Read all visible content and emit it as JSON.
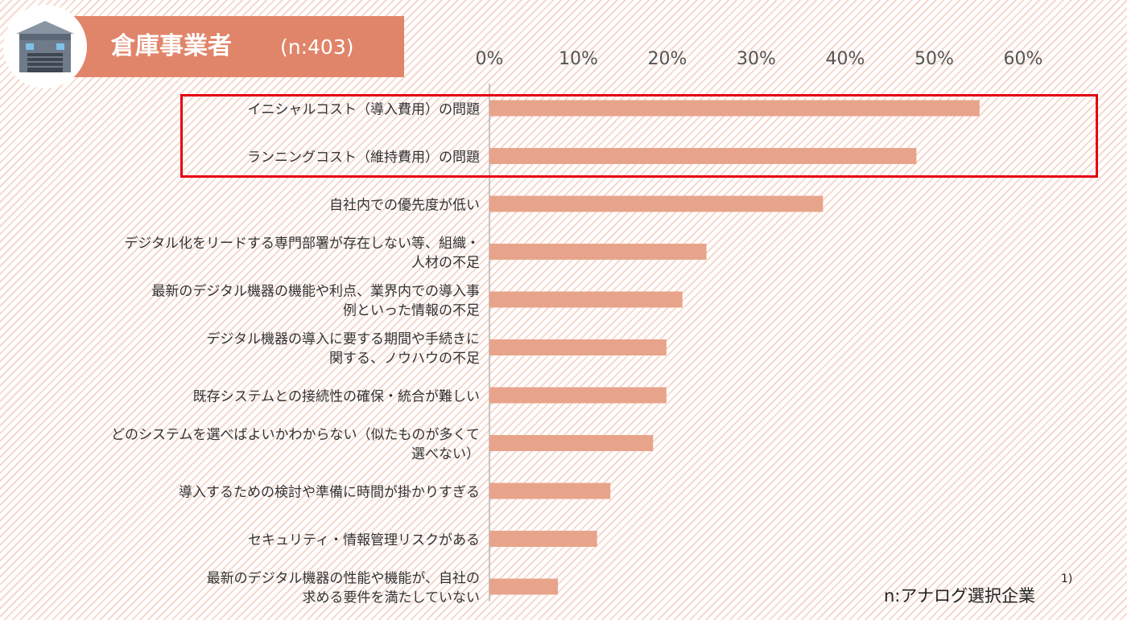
{
  "header": {
    "title": "倉庫事業者",
    "n_label": "(n:403)",
    "icon": "warehouse-icon"
  },
  "colors": {
    "bar": "#e8a48b",
    "header_band": "#e0856a",
    "highlight": "#e60012",
    "axis_text": "#555555"
  },
  "highlight": {
    "rows": [
      0,
      1
    ]
  },
  "footnote": {
    "text": "n:アナログ選択企業",
    "sup": "1)"
  },
  "chart_data": {
    "type": "bar",
    "orientation": "horizontal",
    "title": "",
    "xlabel": "",
    "ylabel": "",
    "xlim": [
      0,
      60
    ],
    "ticks": [
      "0%",
      "10%",
      "20%",
      "30%",
      "40%",
      "50%",
      "60%"
    ],
    "tick_values": [
      0,
      10,
      20,
      30,
      40,
      50,
      60
    ],
    "grid": false,
    "categories": [
      [
        "イニシャルコスト（導入費用）の問題"
      ],
      [
        "ランニングコスト（維持費用）の問題"
      ],
      [
        "自社内での優先度が低い"
      ],
      [
        "デジタル化をリードする専門部署が存在しない等、組織・",
        "人材の不足"
      ],
      [
        "最新のデジタル機器の機能や利点、業界内での導入事",
        "例といった情報の不足"
      ],
      [
        "デジタル機器の導入に要する期間や手続きに",
        "関する、ノウハウの不足"
      ],
      [
        "既存システムとの接続性の確保・統合が難しい"
      ],
      [
        "どのシステムを選べばよいかわからない（似たものが多くて",
        "選べない）"
      ],
      [
        "導入するための検討や準備に時間が掛かりすぎる"
      ],
      [
        "セキュリティ・情報管理リスクがある"
      ],
      [
        "最新のデジタル機器の性能や機能が、自社の",
        "求める要件を満たしていない"
      ]
    ],
    "values": [
      55.1,
      48.0,
      37.5,
      24.4,
      21.7,
      19.9,
      19.9,
      18.4,
      13.6,
      12.1,
      7.7
    ]
  }
}
